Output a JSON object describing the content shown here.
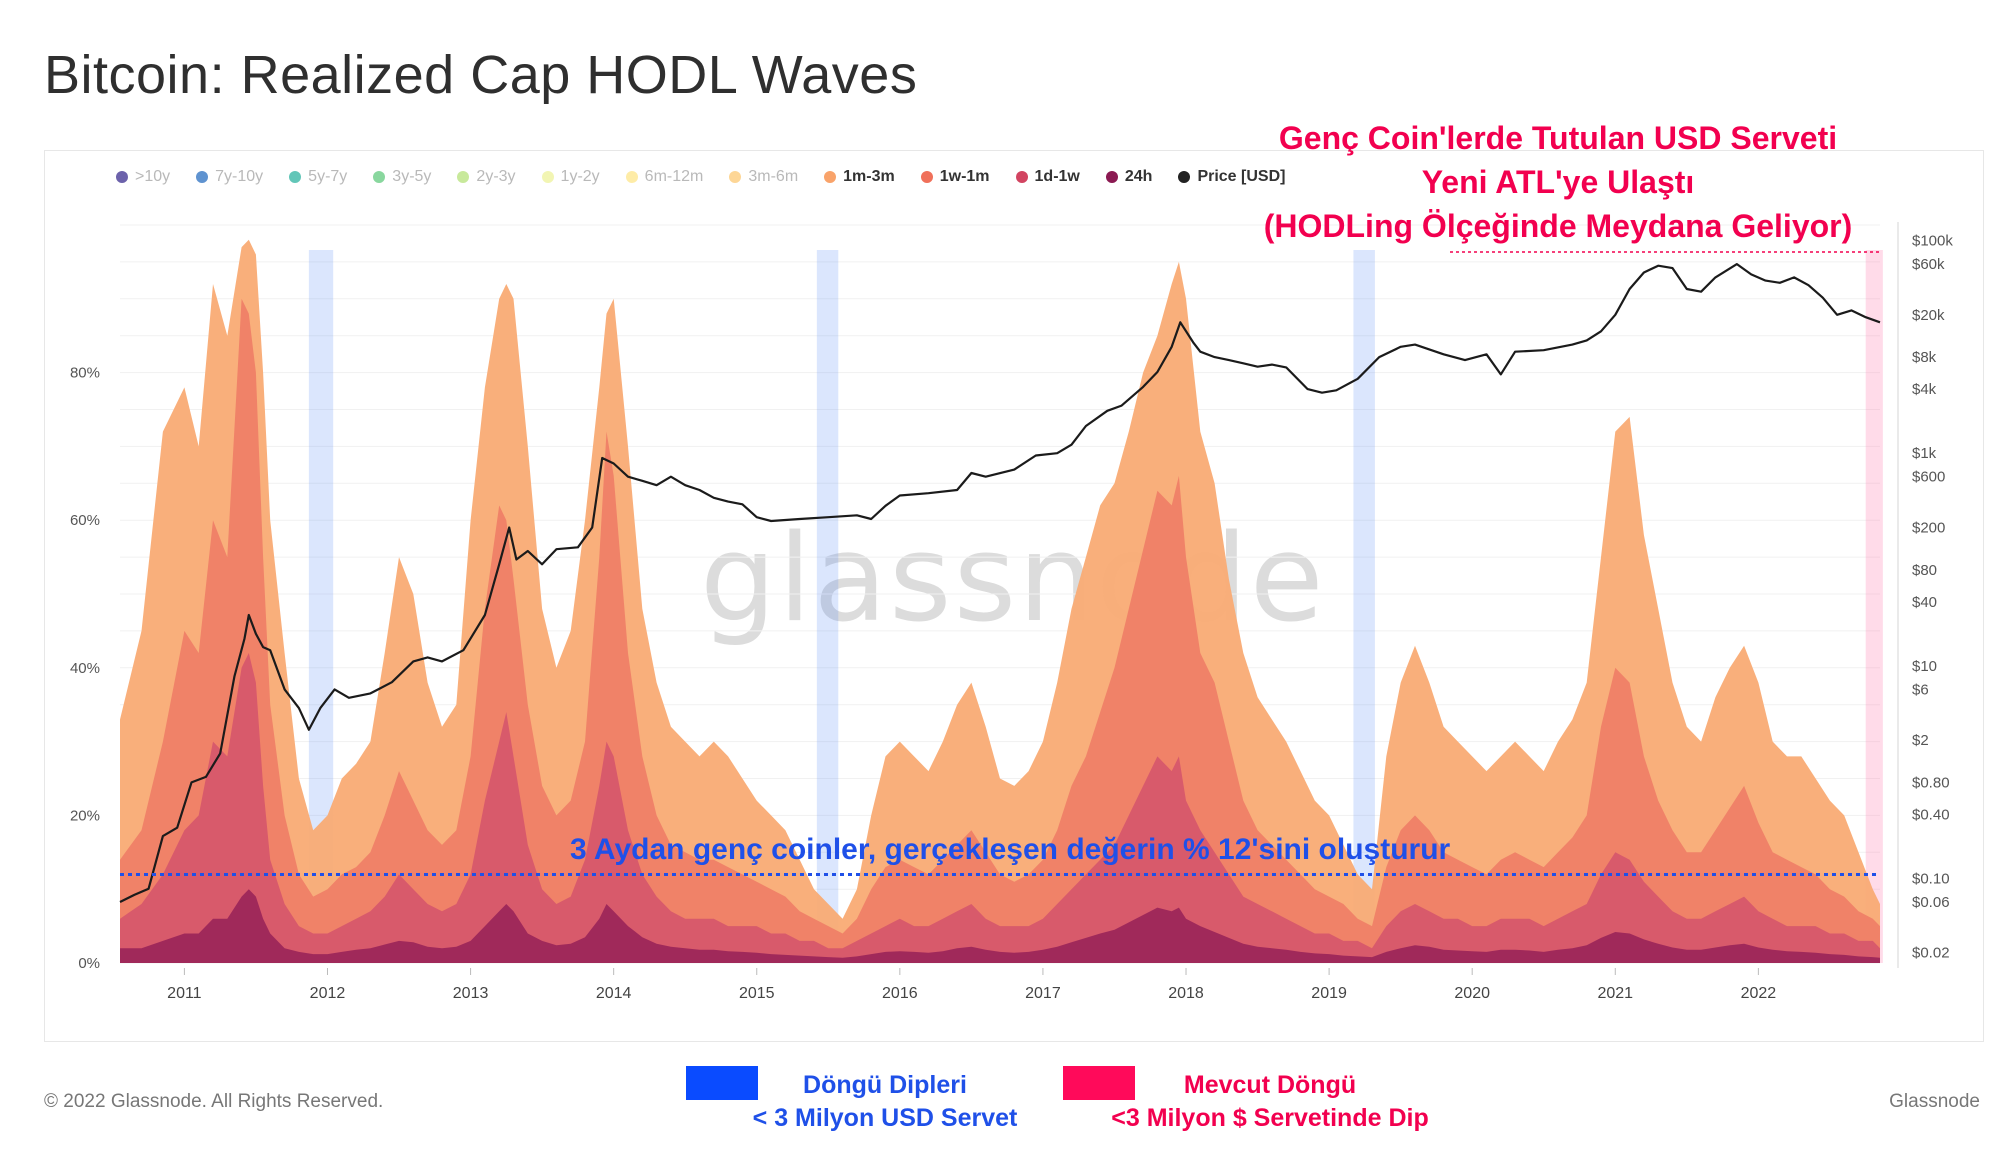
{
  "title": "Bitcoin: Realized Cap HODL Waves",
  "legend": [
    {
      "label": ">10y",
      "color": "#3b2e8f",
      "active": false
    },
    {
      "label": "7y-10y",
      "color": "#2a6fc0",
      "active": false
    },
    {
      "label": "5y-7y",
      "color": "#2eb3a0",
      "active": false
    },
    {
      "label": "3y-5y",
      "color": "#62c97e",
      "active": false
    },
    {
      "label": "2y-3y",
      "color": "#b6e27a",
      "active": false
    },
    {
      "label": "1y-2y",
      "color": "#eef29a",
      "active": false
    },
    {
      "label": "6m-12m",
      "color": "#fde68a",
      "active": false
    },
    {
      "label": "3m-6m",
      "color": "#fcc873",
      "active": false
    },
    {
      "label": "1m-3m",
      "color": "#f9a36a",
      "active": true
    },
    {
      "label": "1w-1m",
      "color": "#f0705a",
      "active": true
    },
    {
      "label": "1d-1w",
      "color": "#d24461",
      "active": true
    },
    {
      "label": "24h",
      "color": "#8b1a52",
      "active": true
    },
    {
      "label": "Price [USD]",
      "color": "#222222",
      "active": true
    }
  ],
  "colors": {
    "band_1m_3m": "#f9ab74",
    "band_1w_1m": "#ee7d66",
    "band_1d_1w": "#d5556c",
    "band_24h": "#9a2459",
    "price": "#1b1b1b",
    "cycle_bottom": "#5a8ef5",
    "current_cycle": "#ff6fa8",
    "annotation_red": "#f2004f",
    "annotation_blue": "#1f50e8"
  },
  "watermark": "glassnode",
  "annotations": {
    "top": [
      "Genç Coin'lerde Tutulan USD Serveti",
      "Yeni ATL'ye Ulaştı",
      "(HODLing Ölçeğinde Meydana Geliyor)"
    ],
    "middle": "3 Aydan genç coinler, gerçekleşen değerin % 12'sini oluşturur"
  },
  "captions": {
    "bottoms_title": "Döngü Dipleri",
    "bottoms_sub": "< 3 Milyon USD Servet",
    "current_title": "Mevcut Döngü",
    "current_sub": "<3 Milyon $ Servetinde Dip"
  },
  "footer": {
    "copyright": "© 2022 Glassnode. All Rights Reserved.",
    "brand": "Glassnode"
  },
  "chart_data": {
    "type": "area",
    "title": "Bitcoin: Realized Cap HODL Waves",
    "x_range": [
      2010.55,
      2022.85
    ],
    "x_ticks": [
      2011,
      2012,
      2013,
      2014,
      2015,
      2016,
      2017,
      2018,
      2019,
      2020,
      2021,
      2022
    ],
    "y_left": {
      "range": [
        0,
        100
      ],
      "unit": "%",
      "ticks": [
        0,
        20,
        40,
        60,
        80
      ],
      "tick_labels": [
        "0%",
        "20%",
        "40%",
        "60%",
        "80%"
      ]
    },
    "y_right": {
      "scale": "log",
      "range": [
        0.016,
        140000
      ],
      "ticks": [
        0.02,
        0.06,
        0.1,
        0.4,
        0.8,
        2,
        6,
        10,
        40,
        80,
        200,
        600,
        1000,
        4000,
        8000,
        20000,
        60000,
        100000
      ],
      "tick_labels": [
        "$0.02",
        "$0.06",
        "$0.10",
        "$0.40",
        "$0.80",
        "$2",
        "$6",
        "$10",
        "$40",
        "$80",
        "$200",
        "$600",
        "$1k",
        "$4k",
        "$8k",
        "$20k",
        "$60k",
        "$100k"
      ]
    },
    "x": [
      2010.55,
      2010.7,
      2010.85,
      2011.0,
      2011.1,
      2011.2,
      2011.3,
      2011.4,
      2011.45,
      2011.5,
      2011.55,
      2011.6,
      2011.7,
      2011.8,
      2011.9,
      2012.0,
      2012.1,
      2012.2,
      2012.3,
      2012.4,
      2012.5,
      2012.6,
      2012.7,
      2012.8,
      2012.9,
      2013.0,
      2013.1,
      2013.2,
      2013.25,
      2013.3,
      2013.4,
      2013.5,
      2013.6,
      2013.7,
      2013.8,
      2013.9,
      2013.95,
      2014.0,
      2014.1,
      2014.2,
      2014.3,
      2014.4,
      2014.5,
      2014.6,
      2014.7,
      2014.8,
      2014.9,
      2015.0,
      2015.1,
      2015.2,
      2015.3,
      2015.4,
      2015.5,
      2015.6,
      2015.7,
      2015.8,
      2015.9,
      2016.0,
      2016.1,
      2016.2,
      2016.3,
      2016.4,
      2016.5,
      2016.6,
      2016.7,
      2016.8,
      2016.9,
      2017.0,
      2017.1,
      2017.2,
      2017.3,
      2017.4,
      2017.5,
      2017.6,
      2017.7,
      2017.8,
      2017.9,
      2017.95,
      2018.0,
      2018.1,
      2018.2,
      2018.3,
      2018.4,
      2018.5,
      2018.6,
      2018.7,
      2018.8,
      2018.9,
      2019.0,
      2019.1,
      2019.2,
      2019.3,
      2019.4,
      2019.5,
      2019.6,
      2019.7,
      2019.8,
      2019.9,
      2020.0,
      2020.1,
      2020.2,
      2020.3,
      2020.4,
      2020.5,
      2020.6,
      2020.7,
      2020.8,
      2020.9,
      2021.0,
      2021.1,
      2021.2,
      2021.3,
      2021.4,
      2021.5,
      2021.6,
      2021.7,
      2021.8,
      2021.9,
      2022.0,
      2022.1,
      2022.2,
      2022.3,
      2022.4,
      2022.5,
      2022.6,
      2022.7,
      2022.8,
      2022.85
    ],
    "series": [
      {
        "name": "1m-3m",
        "values": [
          33,
          45,
          72,
          78,
          70,
          92,
          85,
          97,
          98,
          96,
          80,
          60,
          42,
          25,
          18,
          20,
          25,
          27,
          30,
          42,
          55,
          50,
          38,
          32,
          35,
          60,
          78,
          90,
          92,
          90,
          70,
          48,
          40,
          45,
          60,
          78,
          88,
          90,
          70,
          48,
          38,
          32,
          30,
          28,
          30,
          28,
          25,
          22,
          20,
          18,
          14,
          10,
          8,
          6,
          10,
          20,
          28,
          30,
          28,
          26,
          30,
          35,
          38,
          32,
          25,
          24,
          26,
          30,
          38,
          48,
          55,
          62,
          65,
          72,
          80,
          85,
          92,
          95,
          90,
          72,
          65,
          52,
          42,
          36,
          33,
          30,
          26,
          22,
          20,
          16,
          12,
          10,
          28,
          38,
          43,
          38,
          32,
          30,
          28,
          26,
          28,
          30,
          28,
          26,
          30,
          33,
          38,
          55,
          72,
          74,
          58,
          48,
          38,
          32,
          30,
          36,
          40,
          43,
          38,
          30,
          28,
          28,
          25,
          22,
          20,
          15,
          10,
          8
        ]
      },
      {
        "name": "1w-1m",
        "values": [
          14,
          18,
          30,
          45,
          42,
          60,
          55,
          90,
          88,
          80,
          55,
          35,
          20,
          12,
          9,
          10,
          12,
          13,
          15,
          20,
          26,
          22,
          18,
          16,
          18,
          28,
          48,
          62,
          60,
          52,
          35,
          24,
          20,
          22,
          30,
          55,
          72,
          66,
          42,
          28,
          20,
          16,
          15,
          14,
          14,
          13,
          12,
          11,
          10,
          9,
          7,
          6,
          5,
          4,
          6,
          10,
          13,
          14,
          13,
          12,
          14,
          16,
          18,
          15,
          12,
          11,
          12,
          14,
          18,
          24,
          28,
          34,
          40,
          48,
          56,
          64,
          62,
          66,
          55,
          42,
          38,
          30,
          22,
          18,
          16,
          14,
          12,
          10,
          9,
          8,
          6,
          5,
          13,
          18,
          20,
          18,
          15,
          14,
          13,
          12,
          14,
          15,
          14,
          13,
          15,
          17,
          20,
          32,
          40,
          38,
          28,
          22,
          18,
          15,
          15,
          18,
          21,
          24,
          19,
          15,
          14,
          13,
          12,
          10,
          9,
          7,
          6,
          5
        ]
      },
      {
        "name": "1d-1w",
        "values": [
          6,
          8,
          12,
          18,
          20,
          30,
          28,
          40,
          42,
          38,
          24,
          14,
          8,
          5,
          4,
          4,
          5,
          6,
          7,
          9,
          12,
          10,
          8,
          7,
          8,
          12,
          22,
          30,
          34,
          28,
          16,
          10,
          8,
          9,
          14,
          24,
          30,
          28,
          18,
          12,
          9,
          7,
          6,
          6,
          6,
          5,
          5,
          5,
          4,
          4,
          3,
          3,
          2,
          2,
          3,
          4,
          5,
          6,
          5,
          5,
          6,
          7,
          8,
          6,
          5,
          5,
          5,
          6,
          8,
          10,
          12,
          14,
          16,
          20,
          24,
          28,
          26,
          28,
          22,
          18,
          15,
          12,
          9,
          8,
          7,
          6,
          5,
          4,
          4,
          3,
          3,
          2,
          5,
          7,
          8,
          7,
          6,
          6,
          5,
          5,
          6,
          6,
          6,
          5,
          6,
          7,
          8,
          12,
          15,
          14,
          11,
          9,
          7,
          6,
          6,
          7,
          8,
          9,
          7,
          6,
          5,
          5,
          5,
          4,
          4,
          3,
          3,
          2
        ]
      },
      {
        "name": "24h",
        "values": [
          2,
          2,
          3,
          4,
          4,
          6,
          6,
          9,
          10,
          9,
          6,
          4,
          2,
          1.5,
          1.2,
          1.2,
          1.5,
          1.8,
          2,
          2.5,
          3,
          2.8,
          2.2,
          2,
          2.2,
          3,
          5,
          7,
          8,
          7,
          4,
          3,
          2.4,
          2.6,
          3.5,
          6,
          8,
          7,
          5,
          3.5,
          2.6,
          2.2,
          2,
          1.8,
          1.8,
          1.6,
          1.5,
          1.4,
          1.2,
          1.1,
          1,
          0.9,
          0.8,
          0.7,
          0.9,
          1.2,
          1.5,
          1.6,
          1.5,
          1.4,
          1.6,
          2,
          2.2,
          1.8,
          1.5,
          1.4,
          1.5,
          1.8,
          2.2,
          2.8,
          3.4,
          4,
          4.5,
          5.5,
          6.5,
          7.5,
          7,
          7.5,
          6,
          5,
          4.2,
          3.4,
          2.6,
          2.2,
          2,
          1.8,
          1.5,
          1.3,
          1.2,
          1,
          0.9,
          0.8,
          1.5,
          2,
          2.4,
          2.2,
          1.8,
          1.7,
          1.6,
          1.5,
          1.8,
          1.8,
          1.7,
          1.5,
          1.8,
          2,
          2.4,
          3.4,
          4.2,
          4,
          3.2,
          2.6,
          2.1,
          1.8,
          1.8,
          2.1,
          2.4,
          2.6,
          2.1,
          1.8,
          1.6,
          1.5,
          1.4,
          1.2,
          1.1,
          0.9,
          0.8,
          0.7
        ]
      }
    ],
    "price_series": {
      "x": [
        2010.55,
        2010.65,
        2010.75,
        2010.85,
        2010.95,
        2011.05,
        2011.15,
        2011.25,
        2011.35,
        2011.42,
        2011.45,
        2011.5,
        2011.55,
        2011.6,
        2011.7,
        2011.8,
        2011.87,
        2011.95,
        2012.05,
        2012.15,
        2012.3,
        2012.45,
        2012.6,
        2012.7,
        2012.8,
        2012.95,
        2013.1,
        2013.2,
        2013.27,
        2013.32,
        2013.4,
        2013.5,
        2013.6,
        2013.75,
        2013.85,
        2013.92,
        2014.0,
        2014.1,
        2014.2,
        2014.3,
        2014.4,
        2014.5,
        2014.6,
        2014.7,
        2014.8,
        2014.9,
        2015.0,
        2015.1,
        2015.3,
        2015.5,
        2015.7,
        2015.8,
        2015.9,
        2016.0,
        2016.2,
        2016.4,
        2016.5,
        2016.6,
        2016.8,
        2016.95,
        2017.1,
        2017.2,
        2017.3,
        2017.45,
        2017.55,
        2017.7,
        2017.8,
        2017.9,
        2017.96,
        2018.05,
        2018.1,
        2018.2,
        2018.3,
        2018.4,
        2018.5,
        2018.6,
        2018.7,
        2018.85,
        2018.95,
        2019.05,
        2019.2,
        2019.35,
        2019.5,
        2019.6,
        2019.8,
        2019.95,
        2020.1,
        2020.2,
        2020.3,
        2020.5,
        2020.7,
        2020.8,
        2020.9,
        2021.0,
        2021.1,
        2021.2,
        2021.3,
        2021.4,
        2021.5,
        2021.6,
        2021.7,
        2021.85,
        2021.95,
        2022.05,
        2022.15,
        2022.25,
        2022.35,
        2022.45,
        2022.55,
        2022.65,
        2022.75,
        2022.85
      ],
      "values": [
        0.06,
        0.07,
        0.08,
        0.25,
        0.3,
        0.8,
        0.9,
        1.5,
        8,
        18,
        30,
        20,
        15,
        14,
        6,
        4,
        2.5,
        4,
        6,
        5,
        5.5,
        7,
        11,
        12,
        11,
        14,
        30,
        90,
        200,
        100,
        120,
        90,
        125,
        130,
        200,
        900,
        800,
        600,
        550,
        500,
        600,
        500,
        450,
        380,
        350,
        330,
        250,
        230,
        240,
        250,
        260,
        240,
        320,
        400,
        420,
        450,
        650,
        600,
        700,
        950,
        1000,
        1200,
        1800,
        2500,
        2800,
        4200,
        5800,
        10000,
        17000,
        11000,
        9000,
        8000,
        7500,
        7000,
        6500,
        6800,
        6400,
        4000,
        3700,
        3900,
        5000,
        8000,
        10000,
        10500,
        8500,
        7500,
        8500,
        5500,
        9000,
        9300,
        10500,
        11500,
        14000,
        20000,
        35000,
        50000,
        58000,
        55000,
        35000,
        33000,
        45000,
        60000,
        48000,
        42000,
        40000,
        45000,
        38000,
        29000,
        20000,
        22000,
        19000,
        17000
      ]
    },
    "cycle_bottom_ranges": [
      [
        2011.87,
        2012.04
      ],
      [
        2015.42,
        2015.57
      ],
      [
        2019.17,
        2019.32
      ]
    ],
    "current_cycle_range": [
      2022.75,
      2022.87
    ],
    "threshold_line": {
      "y": 12
    }
  }
}
